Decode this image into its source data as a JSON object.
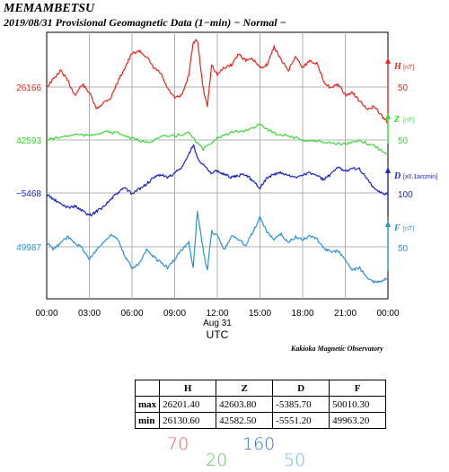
{
  "header": {
    "station": "MEMAMBETSU",
    "subtitle": "2019/08/31  Provisional Geomagnetic Data (1−min)  − Normal −"
  },
  "credit": "Kakioka Magnetic Observatory",
  "colors": {
    "H": "#e8251f",
    "Z": "#35d92f",
    "D": "#1d22c8",
    "F": "#2b90e0",
    "grid": "#b0b0b0"
  },
  "chart_data": {
    "type": "line",
    "x": [
      "00:00",
      "03:00",
      "06:00",
      "09:00",
      "12:00",
      "15:00",
      "18:00",
      "21:00",
      "00:00"
    ],
    "xlabel": "UTC",
    "date_label": "Aug 31",
    "xlim": [
      0,
      24
    ],
    "grid": true,
    "series": [
      {
        "name": "H",
        "unit": "[nT]",
        "baseline": "26166",
        "scale": "50",
        "color": "#e8251f",
        "x": [
          0,
          0.5,
          1,
          1.5,
          2,
          2.5,
          3,
          3.5,
          4,
          4.5,
          5,
          5.5,
          6,
          6.5,
          7,
          7.5,
          8,
          8.5,
          9,
          9.5,
          10,
          10.3,
          10.6,
          11,
          11.3,
          11.6,
          12,
          12.5,
          13,
          13.5,
          14,
          14.5,
          15,
          15.5,
          16,
          16.5,
          17,
          17.5,
          18,
          18.5,
          19,
          19.5,
          20,
          20.5,
          21,
          21.5,
          22,
          22.5,
          23,
          23.5,
          24
        ],
        "y": [
          26166,
          26172,
          26178,
          26170,
          26160,
          26168,
          26162,
          26150,
          26155,
          26158,
          26170,
          26180,
          26190,
          26192,
          26188,
          26180,
          26176,
          26165,
          26158,
          26160,
          26175,
          26198,
          26200,
          26165,
          26152,
          26182,
          26175,
          26180,
          26182,
          26190,
          26185,
          26186,
          26180,
          26182,
          26195,
          26185,
          26178,
          26188,
          26180,
          26185,
          26183,
          26170,
          26165,
          26168,
          26160,
          26162,
          26156,
          26150,
          26152,
          26146,
          26140
        ]
      },
      {
        "name": "Z",
        "unit": "[nT]",
        "baseline": "42593",
        "scale": "50",
        "color": "#35d92f",
        "x": [
          0,
          1,
          2,
          3,
          4,
          5,
          6,
          7,
          8,
          9,
          10,
          11,
          12,
          13,
          14,
          15,
          16,
          17,
          18,
          19,
          20,
          21,
          22,
          23,
          24
        ],
        "y": [
          42593,
          42595,
          42597,
          42596,
          42599,
          42598,
          42594,
          42591,
          42595,
          42596,
          42598,
          42586,
          42595,
          42598,
          42600,
          42604,
          42598,
          42596,
          42593,
          42592,
          42591,
          42590,
          42592,
          42589,
          42583
        ]
      },
      {
        "name": "D",
        "unit": "[x0.1arcmin]",
        "baseline": "−5468",
        "scale": "100",
        "color": "#1d22c8",
        "x": [
          0,
          0.5,
          1,
          1.5,
          2,
          2.5,
          3,
          3.5,
          4,
          4.5,
          5,
          5.5,
          6,
          6.5,
          7,
          7.5,
          8,
          8.5,
          9,
          9.5,
          10,
          10.3,
          10.6,
          11,
          11.5,
          12,
          12.5,
          13,
          13.5,
          14,
          14.5,
          15,
          15.5,
          16,
          16.5,
          17,
          17.5,
          18,
          18.5,
          19,
          19.5,
          20,
          20.5,
          21,
          21.5,
          22,
          22.5,
          23,
          23.5,
          24
        ],
        "y": [
          -5470,
          -5478,
          -5485,
          -5490,
          -5488,
          -5495,
          -5502,
          -5496,
          -5488,
          -5478,
          -5468,
          -5460,
          -5470,
          -5462,
          -5455,
          -5446,
          -5440,
          -5445,
          -5438,
          -5430,
          -5410,
          -5395,
          -5415,
          -5425,
          -5438,
          -5435,
          -5440,
          -5445,
          -5442,
          -5440,
          -5450,
          -5460,
          -5445,
          -5440,
          -5438,
          -5442,
          -5445,
          -5440,
          -5438,
          -5442,
          -5448,
          -5440,
          -5430,
          -5435,
          -5430,
          -5432,
          -5445,
          -5462,
          -5468,
          -5470
        ]
      },
      {
        "name": "F",
        "unit": "[nT]",
        "baseline": "49987",
        "scale": "50",
        "color": "#2b90e0",
        "x": [
          0,
          0.5,
          1,
          1.5,
          2,
          2.5,
          3,
          3.5,
          4,
          4.5,
          5,
          5.5,
          6,
          6.5,
          7,
          7.5,
          8,
          8.5,
          9,
          9.5,
          10,
          10.3,
          10.6,
          11,
          11.3,
          11.6,
          12,
          12.5,
          13,
          13.5,
          14,
          14.5,
          15,
          15.5,
          16,
          16.5,
          17,
          17.5,
          18,
          18.5,
          19,
          19.5,
          20,
          20.5,
          21,
          21.5,
          22,
          22.5,
          23,
          23.5,
          24
        ],
        "y": [
          49990,
          49985,
          49990,
          49994,
          49990,
          49986,
          49978,
          49985,
          49990,
          49996,
          49992,
          49980,
          49972,
          49975,
          49985,
          49980,
          49976,
          49972,
          49978,
          49985,
          49990,
          49972,
          50012,
          49985,
          49970,
          49998,
          49995,
          49985,
          49995,
          49992,
          49988,
          49998,
          50008,
          49998,
          49992,
          49996,
          49990,
          49994,
          49992,
          49995,
          49993,
          49986,
          49983,
          49984,
          49978,
          49970,
          49972,
          49965,
          49962,
          49962,
          49965
        ]
      }
    ]
  },
  "table": {
    "headers": [
      "",
      "H",
      "Z",
      "D",
      "F"
    ],
    "rows": [
      {
        "label": "max",
        "values": [
          "26201.40",
          "42603.80",
          "-5385.70",
          "50010.30"
        ]
      },
      {
        "label": "min",
        "values": [
          "26130.60",
          "42582.50",
          "-5551.20",
          "49963.20"
        ]
      }
    ]
  },
  "handwritten": [
    {
      "text": "70",
      "color": "#e8625a"
    },
    {
      "text": "20",
      "color": "#5cc85a"
    },
    {
      "text": "160",
      "color": "#3d6fc8"
    },
    {
      "text": "50",
      "color": "#6ab8ea"
    }
  ]
}
